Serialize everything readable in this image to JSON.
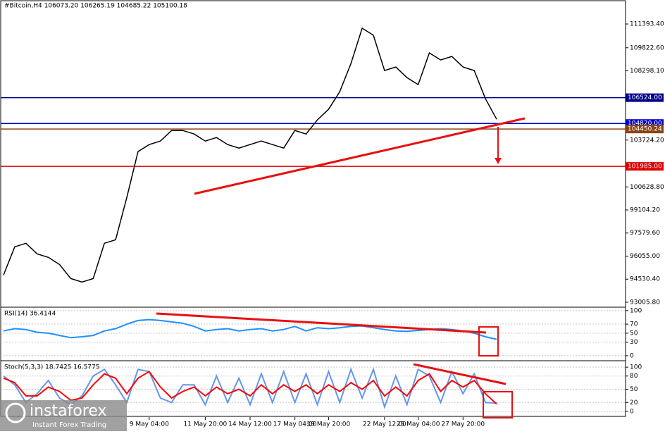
{
  "chart_data": [
    {
      "type": "line",
      "title": "#Bitcoin,H4  106073.20 106265.19 104685.22 105100.18",
      "categories": [
        null,
        null,
        null,
        null,
        null,
        null,
        null,
        null,
        null,
        null,
        null,
        null,
        null,
        "9 May 04:00",
        null,
        null,
        null,
        null,
        "11 May 20:00",
        null,
        null,
        null,
        "14 May 12:00",
        null,
        null,
        null,
        "17 May 04:00",
        null,
        null,
        "19 May 20:00",
        null,
        null,
        null,
        null,
        "22 May 12:00",
        null,
        null,
        "25 May 04:00",
        null,
        null,
        null,
        "27 May 20:00",
        null,
        null,
        null
      ],
      "series": [
        {
          "color": "#000000",
          "values": [
            94804,
            96668,
            96901,
            96202,
            95969,
            95503,
            94571,
            94338,
            94571,
            96901,
            97134,
            99930,
            102959,
            103425,
            103658,
            104357,
            104357,
            104124,
            103658,
            103891,
            103425,
            103192,
            103425,
            103658,
            103425,
            103192,
            104357,
            104124,
            105056,
            105755,
            106920,
            108784,
            111114,
            110648,
            108318,
            108551,
            107852,
            107386,
            109481,
            109015,
            109248,
            108551,
            108318,
            106454,
            105100.18
          ]
        }
      ],
      "ylim": [
        92726,
        112978
      ],
      "yticks": [
        {
          "value": 111393.4,
          "label": "111393.40"
        },
        {
          "value": 109822.6,
          "label": "109822.60"
        },
        {
          "value": 108298.1,
          "label": "108298.10"
        },
        {
          "value": 103724.2,
          "label": "103724.20"
        },
        {
          "value": 100628.8,
          "label": "100628.80"
        },
        {
          "value": 99104.2,
          "label": "99104.20"
        },
        {
          "value": 97579.6,
          "label": "97579.60"
        },
        {
          "value": 96055,
          "label": "96055.00"
        },
        {
          "value": 94530.4,
          "label": "94530.40"
        },
        {
          "value": 93005.8,
          "label": "93005.80"
        }
      ],
      "levels": [
        {
          "value": 106524,
          "label": "106524.00",
          "color": "#00008b"
        },
        {
          "value": 104820,
          "label": "104820.00",
          "color": "#0000cd"
        },
        {
          "value": 104450.24,
          "label": "104450.24",
          "color": "#8b4513"
        },
        {
          "value": 101985,
          "label": "101985.00",
          "color": "#e00000"
        }
      ]
    },
    {
      "type": "line",
      "title": "RSI(14) 36.4144",
      "series": [
        {
          "color": "#1e90ff",
          "values": [
            55,
            60,
            58,
            52,
            50,
            45,
            40,
            42,
            45,
            55,
            60,
            70,
            78,
            80,
            78,
            75,
            72,
            65,
            55,
            58,
            60,
            55,
            58,
            60,
            55,
            58,
            65,
            55,
            62,
            60,
            62,
            65,
            66,
            62,
            58,
            55,
            54,
            56,
            58,
            60,
            58,
            55,
            50,
            42,
            36.4144
          ]
        }
      ],
      "ylim": [
        -8,
        106
      ],
      "yticks": [
        100,
        70,
        50,
        30,
        0
      ]
    },
    {
      "type": "line",
      "title": "Stoch(5,3,3) 18.7425 16.5775",
      "series": [
        {
          "color": "#6495ed",
          "values": [
            80,
            60,
            20,
            40,
            70,
            30,
            15,
            35,
            80,
            95,
            60,
            20,
            95,
            90,
            30,
            20,
            60,
            60,
            15,
            80,
            20,
            75,
            15,
            85,
            20,
            90,
            20,
            85,
            15,
            90,
            20,
            95,
            30,
            95,
            10,
            80,
            15,
            95,
            80,
            20,
            90,
            40,
            85,
            20,
            18.7425
          ]
        },
        {
          "color": "#ff0000",
          "values": [
            75,
            65,
            35,
            35,
            55,
            45,
            25,
            30,
            60,
            85,
            75,
            40,
            75,
            90,
            55,
            30,
            45,
            55,
            35,
            55,
            40,
            50,
            35,
            60,
            40,
            60,
            45,
            60,
            40,
            60,
            45,
            65,
            50,
            70,
            35,
            55,
            35,
            70,
            85,
            45,
            70,
            55,
            70,
            40,
            16.5775
          ]
        }
      ],
      "ylim": [
        -13,
        113
      ],
      "yticks": [
        100,
        80,
        50,
        20,
        0
      ]
    }
  ],
  "watermark": {
    "brand": "instaforex",
    "tagline": "Instant Forex Trading"
  }
}
